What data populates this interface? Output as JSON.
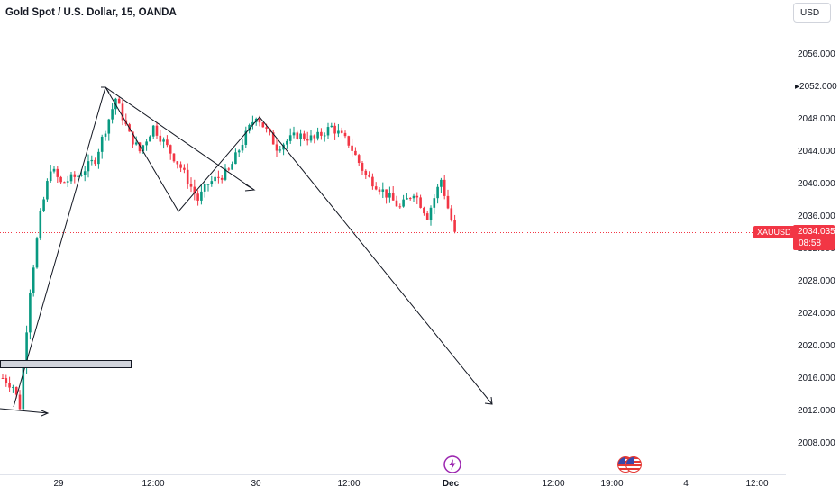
{
  "header": {
    "title": "Gold Spot / U.S. Dollar, 15, OANDA",
    "currency_button": "USD"
  },
  "price_axis": {
    "ticks": [
      "2056.000",
      "2052.000",
      "2048.000",
      "2044.000",
      "2040.000",
      "2036.000",
      "2032.000",
      "2028.000",
      "2024.000",
      "2020.000",
      "2016.000",
      "2012.000",
      "2008.000"
    ],
    "symbol_label": "XAUUSD",
    "last_price": "2034.035",
    "countdown": "08:58"
  },
  "time_axis": {
    "ticks": [
      "29",
      "12:00",
      "30",
      "12:00",
      "Dec",
      "12:00",
      "19:00",
      "4",
      "12:00"
    ]
  },
  "events": {
    "flash_icon": "lightning-icon",
    "flag_icon": "us-flag-icon"
  },
  "colors": {
    "up": "#089981",
    "down": "#f23645",
    "price_line": "#f23645",
    "drawing": "#131722",
    "zone_fill": "#d1d4dc",
    "event_purple": "#9c27b0"
  },
  "chart_data": {
    "type": "candlestick",
    "symbol": "XAUUSD",
    "timeframe": "15",
    "ylim": [
      2006,
      2060
    ],
    "last_price": 2034.035,
    "waypoints": [
      {
        "t": 0.0,
        "p": 2016.0
      },
      {
        "t": 3.0,
        "p": 2015.0
      },
      {
        "t": 5.0,
        "p": 2012.5
      },
      {
        "t": 8.0,
        "p": 2027.0
      },
      {
        "t": 11.0,
        "p": 2036.0
      },
      {
        "t": 14.0,
        "p": 2042.0
      },
      {
        "t": 17.0,
        "p": 2040.0
      },
      {
        "t": 22.0,
        "p": 2041.0
      },
      {
        "t": 27.0,
        "p": 2043.0
      },
      {
        "t": 31.0,
        "p": 2048.0
      },
      {
        "t": 33.0,
        "p": 2050.5
      },
      {
        "t": 37.0,
        "p": 2046.0
      },
      {
        "t": 40.0,
        "p": 2044.0
      },
      {
        "t": 44.0,
        "p": 2047.0
      },
      {
        "t": 52.0,
        "p": 2042.0
      },
      {
        "t": 57.0,
        "p": 2038.0
      },
      {
        "t": 60.0,
        "p": 2040.0
      },
      {
        "t": 66.0,
        "p": 2041.5
      },
      {
        "t": 71.0,
        "p": 2046.0
      },
      {
        "t": 74.0,
        "p": 2048.5
      },
      {
        "t": 80.0,
        "p": 2044.5
      },
      {
        "t": 86.0,
        "p": 2046.0
      },
      {
        "t": 91.0,
        "p": 2045.5
      },
      {
        "t": 96.0,
        "p": 2047.0
      },
      {
        "t": 101.0,
        "p": 2045.0
      },
      {
        "t": 106.0,
        "p": 2041.0
      },
      {
        "t": 110.0,
        "p": 2039.5
      },
      {
        "t": 116.0,
        "p": 2037.0
      },
      {
        "t": 120.0,
        "p": 2039.0
      },
      {
        "t": 124.0,
        "p": 2036.0
      },
      {
        "t": 128.0,
        "p": 2040.5
      },
      {
        "t": 130.0,
        "p": 2037.0
      },
      {
        "t": 132.0,
        "p": 2034.0
      }
    ]
  }
}
